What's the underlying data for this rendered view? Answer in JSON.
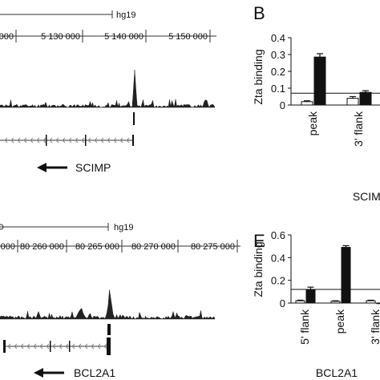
{
  "panels": [
    {
      "id": "top",
      "assembly": "hg19",
      "ticks": [
        "000",
        "5 130 000",
        "5 140 000",
        "5 150 000"
      ],
      "gene": "SCIMP",
      "arrow": "left"
    },
    {
      "id": "bottom",
      "assembly": "hg19",
      "ticks": [
        "000",
        "80 260 000",
        "80 265 000",
        "80 270 000",
        "80 275 000"
      ],
      "gene": "BCL2A1",
      "arrow": "left"
    }
  ],
  "chart_data": [
    {
      "panel_label": "B",
      "type": "bar",
      "ylabel": "Zta binding",
      "ylim": [
        0,
        0.4
      ],
      "yticks": [
        "0",
        "0.1",
        "0.2",
        "0.3",
        "0.4"
      ],
      "categories": [
        "peak",
        "3' flank"
      ],
      "series": [
        {
          "color": "#ffffff",
          "values": [
            0.02,
            0.04
          ],
          "errors": [
            0.005,
            0.01
          ]
        },
        {
          "color": "#111111",
          "values": [
            0.285,
            0.075
          ],
          "errors": [
            0.02,
            0.01
          ]
        }
      ],
      "threshold": 0.07,
      "xlabel": "SCIMP"
    },
    {
      "panel_label": "E",
      "type": "bar",
      "ylabel": "Zta binding",
      "ylim": [
        0,
        0.6
      ],
      "yticks": [
        "0",
        "0.2",
        "0.4",
        "0.6"
      ],
      "categories": [
        "5' flank",
        "peak",
        "3' flank"
      ],
      "series": [
        {
          "color": "#ffffff",
          "values": [
            0.02,
            0.015,
            0.02
          ],
          "errors": [
            0.005,
            0.005,
            0.005
          ]
        },
        {
          "color": "#111111",
          "values": [
            0.12,
            0.49,
            0.0
          ],
          "errors": [
            0.02,
            0.015,
            0.0
          ]
        }
      ],
      "threshold": 0.12,
      "xlabel": "BCL2A1"
    }
  ]
}
